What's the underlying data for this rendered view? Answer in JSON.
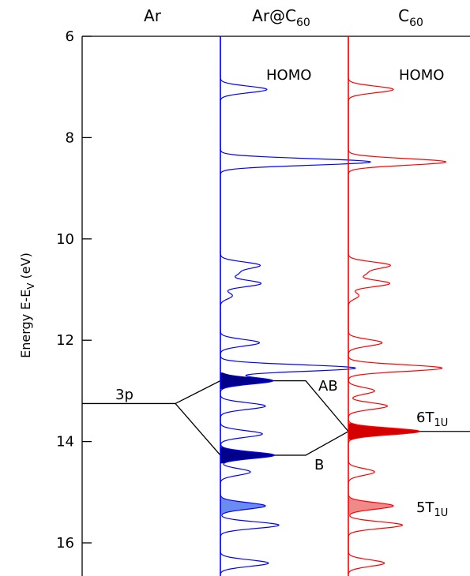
{
  "chart_data": {
    "type": "line",
    "ylabel": "Energy E-E",
    "ylabel_sub": "V",
    "ylabel_unit": " (eV)",
    "ylim": [
      6,
      16.6
    ],
    "y_inverted": true,
    "y_ticks": [
      "6",
      "8",
      "10",
      "12",
      "14",
      "16"
    ],
    "panels": [
      {
        "name": "Ar",
        "base": "Ar",
        "sub": ""
      },
      {
        "name": "Ar@C60",
        "base": "Ar@C",
        "sub": "60"
      },
      {
        "name": "C60",
        "base": "C",
        "sub": "60"
      }
    ],
    "colors": {
      "ar_c60": "#0000ff",
      "c60": "#ff0000",
      "ar": "#000000",
      "blue_dark": "#00008b",
      "blue_light": "#6a8cf0",
      "red_dark": "#d40000",
      "red_light": "#f08a8a"
    },
    "series": [
      {
        "name": "Ar@C60",
        "color": "#0000ff",
        "peaks": [
          {
            "energy": 7.05,
            "height": 0.31
          },
          {
            "energy": 8.48,
            "height": 1.0
          },
          {
            "energy": 10.52,
            "height": 0.26
          },
          {
            "energy": 10.68,
            "height": 0.11
          },
          {
            "energy": 10.88,
            "height": 0.27
          },
          {
            "energy": 11.12,
            "height": 0.08
          },
          {
            "energy": 12.05,
            "height": 0.26
          },
          {
            "energy": 12.55,
            "height": 0.9
          },
          {
            "energy": 12.8,
            "height": 0.35,
            "filled": "dark"
          },
          {
            "energy": 13.3,
            "height": 0.3
          },
          {
            "energy": 13.85,
            "height": 0.28
          },
          {
            "energy": 14.27,
            "height": 0.36,
            "filled": "dark"
          },
          {
            "energy": 14.6,
            "height": 0.2
          },
          {
            "energy": 15.27,
            "height": 0.3,
            "filled": "light"
          },
          {
            "energy": 15.65,
            "height": 0.39
          },
          {
            "energy": 16.4,
            "height": 0.32
          }
        ]
      },
      {
        "name": "C60",
        "color": "#ff0000",
        "peaks": [
          {
            "energy": 7.05,
            "height": 0.6
          },
          {
            "energy": 8.48,
            "height": 1.3
          },
          {
            "energy": 10.52,
            "height": 0.55
          },
          {
            "energy": 10.68,
            "height": 0.22
          },
          {
            "energy": 10.88,
            "height": 0.55
          },
          {
            "energy": 11.12,
            "height": 0.14
          },
          {
            "energy": 12.05,
            "height": 0.45
          },
          {
            "energy": 12.55,
            "height": 1.25
          },
          {
            "energy": 13.0,
            "height": 0.35
          },
          {
            "energy": 13.3,
            "height": 0.52
          },
          {
            "energy": 13.8,
            "height": 0.95,
            "filled": "dark"
          },
          {
            "energy": 14.6,
            "height": 0.35
          },
          {
            "energy": 15.27,
            "height": 0.6,
            "filled": "light"
          },
          {
            "energy": 15.65,
            "height": 0.72
          },
          {
            "energy": 16.4,
            "height": 0.48
          }
        ]
      }
    ],
    "ar_level": {
      "label": "3p",
      "energy": 13.25
    },
    "c60_level": {
      "energy": 13.8
    },
    "correlation": {
      "ab_energy": 12.8,
      "b_energy": 14.27
    },
    "annotations": [
      {
        "text": "HOMO",
        "panel": "Ar@C60"
      },
      {
        "text": "HOMO",
        "panel": "C60"
      },
      {
        "text": "AB"
      },
      {
        "text": "B"
      },
      {
        "base": "6T",
        "sub": "1U"
      },
      {
        "base": "5T",
        "sub": "1U"
      }
    ]
  }
}
